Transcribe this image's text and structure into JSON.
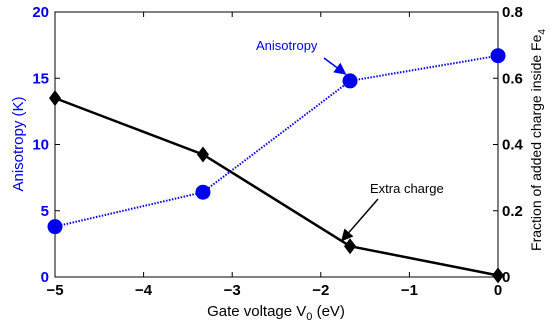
{
  "chart_data": {
    "type": "line",
    "xlabel": "Gate voltage V",
    "xlabel_sub": "0",
    "xlabel_unit": " (eV)",
    "ylabel_left": "Anisotropy (K)",
    "ylabel_right": "Fraction of added charge inside Fe",
    "ylabel_right_sub": "4",
    "xlim": [
      -5,
      0
    ],
    "ylim_left": [
      0,
      20
    ],
    "ylim_right": [
      0,
      0.8
    ],
    "x_ticks": [
      "−5",
      "−4",
      "−3",
      "−2",
      "−1",
      "0"
    ],
    "y_left_ticks": [
      "0",
      "5",
      "10",
      "15",
      "20"
    ],
    "y_right_ticks": [
      "0",
      "0.2",
      "0.4",
      "0.6",
      "0.8"
    ],
    "series": [
      {
        "axis": "left",
        "color": "#0000ee",
        "marker": "circle",
        "line": "dotted",
        "x": [
          -5,
          -3.33,
          -1.67,
          0
        ],
        "y": [
          3.8,
          6.4,
          14.8,
          16.7
        ]
      },
      {
        "axis": "right",
        "color": "#000000",
        "marker": "diamond",
        "line": "solid",
        "x": [
          -5,
          -3.33,
          -1.67,
          0
        ],
        "y": [
          0.54,
          0.37,
          0.093,
          0.005
        ]
      }
    ],
    "annotations": [
      {
        "text": "Anisotropy",
        "color": "#0000ee",
        "points_to": {
          "series": 0,
          "index": 2
        }
      },
      {
        "text": "Extra charge",
        "color": "#000000",
        "points_to": {
          "series": 1,
          "index": 2
        }
      }
    ]
  }
}
